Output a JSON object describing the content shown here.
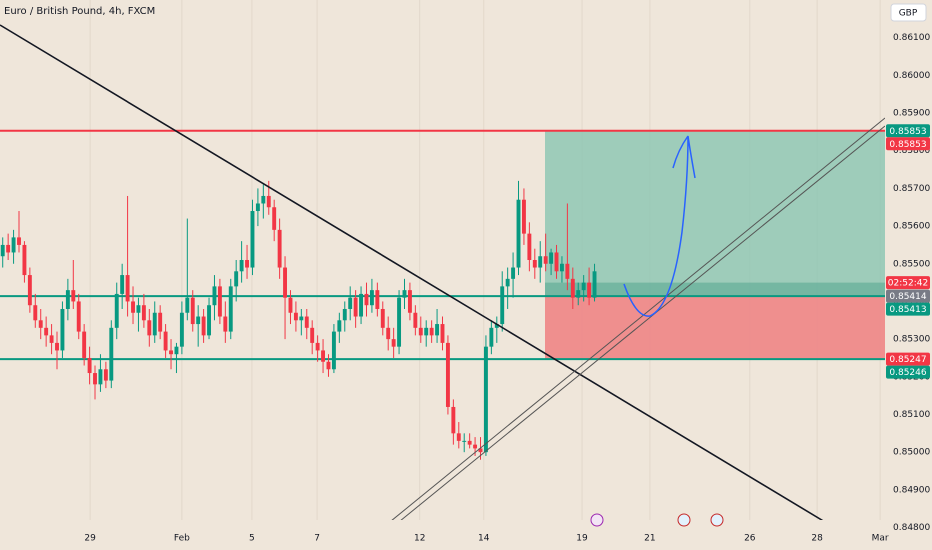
{
  "chart_data": {
    "type": "candlestick",
    "title": "Euro / British Pound, 4h, FXCM",
    "currency": "GBP",
    "up_color": "#089981",
    "down_color": "#f23645",
    "ylim": [
      0.8482,
      0.862
    ],
    "yticks": [
      {
        "value": 0.848,
        "label": "0.84800"
      },
      {
        "value": 0.849,
        "label": "0.84900"
      },
      {
        "value": 0.85,
        "label": "0.85000"
      },
      {
        "value": 0.851,
        "label": "0.85100"
      },
      {
        "value": 0.852,
        "label": "0.85200"
      },
      {
        "value": 0.853,
        "label": "0.85300"
      },
      {
        "value": 0.854,
        "label": "0.85400"
      },
      {
        "value": 0.855,
        "label": "0.85500"
      },
      {
        "value": 0.856,
        "label": "0.85600"
      },
      {
        "value": 0.857,
        "label": "0.85700"
      },
      {
        "value": 0.858,
        "label": "0.85800"
      },
      {
        "value": 0.859,
        "label": "0.85900"
      },
      {
        "value": 0.86,
        "label": "0.86000"
      },
      {
        "value": 0.861,
        "label": "0.86100"
      }
    ],
    "xlim": [
      0,
      163
    ],
    "xticks": [
      {
        "value": 16.6,
        "label": "29"
      },
      {
        "value": 33.5,
        "label": "Feb"
      },
      {
        "value": 46.4,
        "label": "5"
      },
      {
        "value": 58.4,
        "label": "7"
      },
      {
        "value": 77.3,
        "label": "12"
      },
      {
        "value": 89.1,
        "label": "14"
      },
      {
        "value": 107.2,
        "label": "19"
      },
      {
        "value": 119.7,
        "label": "21"
      },
      {
        "value": 138.1,
        "label": "26"
      },
      {
        "value": 150.5,
        "label": "28"
      },
      {
        "value": 162.1,
        "label": "Mar"
      }
    ],
    "grid": true,
    "candles": [
      [
        0.8552,
        0.8557,
        0.8549,
        0.8555
      ],
      [
        0.8555,
        0.8558,
        0.8551,
        0.8553
      ],
      [
        0.8553,
        0.8559,
        0.855,
        0.8557
      ],
      [
        0.8557,
        0.8564,
        0.8553,
        0.8555
      ],
      [
        0.8555,
        0.8556,
        0.8545,
        0.8547
      ],
      [
        0.8547,
        0.8549,
        0.8537,
        0.8539
      ],
      [
        0.8539,
        0.8542,
        0.8533,
        0.8535
      ],
      [
        0.8535,
        0.8538,
        0.853,
        0.8533
      ],
      [
        0.8533,
        0.8536,
        0.8528,
        0.8531
      ],
      [
        0.8531,
        0.8534,
        0.8526,
        0.8529
      ],
      [
        0.8529,
        0.8532,
        0.8522,
        0.8527
      ],
      [
        0.8527,
        0.854,
        0.8525,
        0.8538
      ],
      [
        0.8538,
        0.8546,
        0.8535,
        0.8543
      ],
      [
        0.8543,
        0.8551,
        0.8538,
        0.854
      ],
      [
        0.854,
        0.8542,
        0.853,
        0.8532
      ],
      [
        0.8532,
        0.8534,
        0.8523,
        0.8525
      ],
      [
        0.8525,
        0.8528,
        0.8518,
        0.8521
      ],
      [
        0.8521,
        0.8523,
        0.8514,
        0.8518
      ],
      [
        0.8518,
        0.8526,
        0.8516,
        0.8522
      ],
      [
        0.8522,
        0.8524,
        0.8517,
        0.8519
      ],
      [
        0.8519,
        0.8535,
        0.8517,
        0.8533
      ],
      [
        0.8533,
        0.8545,
        0.853,
        0.8542
      ],
      [
        0.8542,
        0.855,
        0.8538,
        0.8547
      ],
      [
        0.8547,
        0.8568,
        0.8536,
        0.854
      ],
      [
        0.854,
        0.8544,
        0.8534,
        0.8537
      ],
      [
        0.8537,
        0.8541,
        0.8532,
        0.8539
      ],
      [
        0.8539,
        0.8542,
        0.8533,
        0.8535
      ],
      [
        0.8535,
        0.8538,
        0.8528,
        0.8531
      ],
      [
        0.8531,
        0.854,
        0.8529,
        0.8537
      ],
      [
        0.8537,
        0.8539,
        0.853,
        0.8532
      ],
      [
        0.8532,
        0.8534,
        0.8525,
        0.8527
      ],
      [
        0.8527,
        0.853,
        0.8522,
        0.8526
      ],
      [
        0.8526,
        0.8529,
        0.8521,
        0.8528
      ],
      [
        0.8528,
        0.854,
        0.8526,
        0.8537
      ],
      [
        0.8537,
        0.8562,
        0.8535,
        0.8541
      ],
      [
        0.8541,
        0.8543,
        0.8532,
        0.8534
      ],
      [
        0.8534,
        0.8539,
        0.8528,
        0.8536
      ],
      [
        0.8536,
        0.8538,
        0.8529,
        0.8531
      ],
      [
        0.8531,
        0.8541,
        0.853,
        0.8539
      ],
      [
        0.8539,
        0.8547,
        0.8535,
        0.8544
      ],
      [
        0.8544,
        0.8546,
        0.8534,
        0.8536
      ],
      [
        0.8536,
        0.854,
        0.8529,
        0.8532
      ],
      [
        0.8532,
        0.8546,
        0.853,
        0.8544
      ],
      [
        0.8544,
        0.8551,
        0.854,
        0.8548
      ],
      [
        0.8548,
        0.8556,
        0.8545,
        0.8551
      ],
      [
        0.8551,
        0.8555,
        0.8546,
        0.8549
      ],
      [
        0.8549,
        0.8567,
        0.8547,
        0.8564
      ],
      [
        0.8564,
        0.857,
        0.856,
        0.8566
      ],
      [
        0.8566,
        0.8571,
        0.8562,
        0.8568
      ],
      [
        0.8568,
        0.8572,
        0.8563,
        0.8565
      ],
      [
        0.8565,
        0.8567,
        0.8556,
        0.8559
      ],
      [
        0.8559,
        0.8562,
        0.8546,
        0.8549
      ],
      [
        0.8549,
        0.8552,
        0.853,
        0.8541
      ],
      [
        0.8541,
        0.8543,
        0.8534,
        0.8537
      ],
      [
        0.8537,
        0.854,
        0.8532,
        0.8535
      ],
      [
        0.8535,
        0.8538,
        0.8531,
        0.8536
      ],
      [
        0.8536,
        0.8538,
        0.853,
        0.8533
      ],
      [
        0.8533,
        0.8535,
        0.8526,
        0.8529
      ],
      [
        0.8529,
        0.8531,
        0.8524,
        0.8527
      ],
      [
        0.8527,
        0.853,
        0.8521,
        0.8524
      ],
      [
        0.8524,
        0.8526,
        0.852,
        0.8522
      ],
      [
        0.8522,
        0.8534,
        0.8521,
        0.8532
      ],
      [
        0.8532,
        0.8537,
        0.8529,
        0.8535
      ],
      [
        0.8535,
        0.854,
        0.8532,
        0.8538
      ],
      [
        0.8538,
        0.8544,
        0.8535,
        0.8541
      ],
      [
        0.8541,
        0.8543,
        0.8533,
        0.8536
      ],
      [
        0.8536,
        0.8544,
        0.8534,
        0.8542
      ],
      [
        0.8542,
        0.8545,
        0.8536,
        0.8539
      ],
      [
        0.8539,
        0.8546,
        0.8537,
        0.8543
      ],
      [
        0.8543,
        0.8545,
        0.8536,
        0.8538
      ],
      [
        0.8538,
        0.854,
        0.8531,
        0.8533
      ],
      [
        0.8533,
        0.8536,
        0.8527,
        0.853
      ],
      [
        0.853,
        0.8533,
        0.8525,
        0.8528
      ],
      [
        0.8528,
        0.8543,
        0.8526,
        0.8541
      ],
      [
        0.8541,
        0.8546,
        0.8538,
        0.8543
      ],
      [
        0.8543,
        0.8545,
        0.8535,
        0.8537
      ],
      [
        0.8537,
        0.8539,
        0.8531,
        0.8533
      ],
      [
        0.8533,
        0.8536,
        0.8529,
        0.8531
      ],
      [
        0.8531,
        0.8535,
        0.8528,
        0.8533
      ],
      [
        0.8533,
        0.8535,
        0.8529,
        0.8531
      ],
      [
        0.8531,
        0.8538,
        0.8529,
        0.8534
      ],
      [
        0.8534,
        0.8536,
        0.8527,
        0.8529
      ],
      [
        0.8529,
        0.8531,
        0.851,
        0.8512
      ],
      [
        0.8512,
        0.8514,
        0.8502,
        0.8505
      ],
      [
        0.8505,
        0.8508,
        0.8501,
        0.8503
      ],
      [
        0.8503,
        0.8505,
        0.85,
        0.8503
      ],
      [
        0.8503,
        0.8505,
        0.8501,
        0.8502
      ],
      [
        0.8502,
        0.8504,
        0.8499,
        0.8501
      ],
      [
        0.8501,
        0.8504,
        0.8498,
        0.85
      ],
      [
        0.85,
        0.8531,
        0.8499,
        0.8528
      ],
      [
        0.8528,
        0.8535,
        0.8526,
        0.8533
      ],
      [
        0.8533,
        0.8536,
        0.8529,
        0.8534
      ],
      [
        0.8534,
        0.8548,
        0.8532,
        0.8544
      ],
      [
        0.8544,
        0.8549,
        0.8538,
        0.8546
      ],
      [
        0.8546,
        0.8553,
        0.8541,
        0.8549
      ],
      [
        0.8549,
        0.8572,
        0.8547,
        0.8567
      ],
      [
        0.8567,
        0.857,
        0.8555,
        0.8558
      ],
      [
        0.8558,
        0.8561,
        0.8548,
        0.8551
      ],
      [
        0.8551,
        0.8554,
        0.8546,
        0.8549
      ],
      [
        0.8549,
        0.8556,
        0.8545,
        0.8552
      ],
      [
        0.8552,
        0.8558,
        0.8548,
        0.855
      ],
      [
        0.855,
        0.8554,
        0.8547,
        0.8553
      ],
      [
        0.8553,
        0.8555,
        0.8546,
        0.8548
      ],
      [
        0.8548,
        0.8552,
        0.8545,
        0.855
      ],
      [
        0.855,
        0.8566,
        0.8543,
        0.8546
      ],
      [
        0.8546,
        0.8549,
        0.8538,
        0.8541
      ],
      [
        0.8541,
        0.8545,
        0.8539,
        0.8543
      ],
      [
        0.8543,
        0.8547,
        0.854,
        0.8545
      ],
      [
        0.8545,
        0.8549,
        0.8539,
        0.8541
      ],
      [
        0.8541,
        0.855,
        0.854,
        0.8548
      ]
    ],
    "levels": [
      {
        "value": 0.85853,
        "color": "#f23645"
      },
      {
        "value": 0.85414,
        "color": "#089981"
      },
      {
        "value": 0.85247,
        "color": "#089981"
      }
    ],
    "position": {
      "target": 0.85853,
      "entry": 0.85414,
      "stop": 0.85247,
      "profit_color": "#8fc7b4",
      "loss_color": "#ee8a8a"
    },
    "price_labels": [
      {
        "value": 0.85853,
        "color": "#089981"
      },
      {
        "value": 0.85853,
        "color": "#f23645"
      },
      {
        "value": 0.85414,
        "color": "#787b86"
      },
      {
        "value": 0.85413,
        "color": "#089981"
      },
      {
        "value": 0.85247,
        "color": "#f23645"
      },
      {
        "value": 0.85246,
        "color": "#089981"
      }
    ],
    "countdown": {
      "value": 0.8545,
      "label": "02:52:42",
      "color": "#f23645"
    }
  }
}
